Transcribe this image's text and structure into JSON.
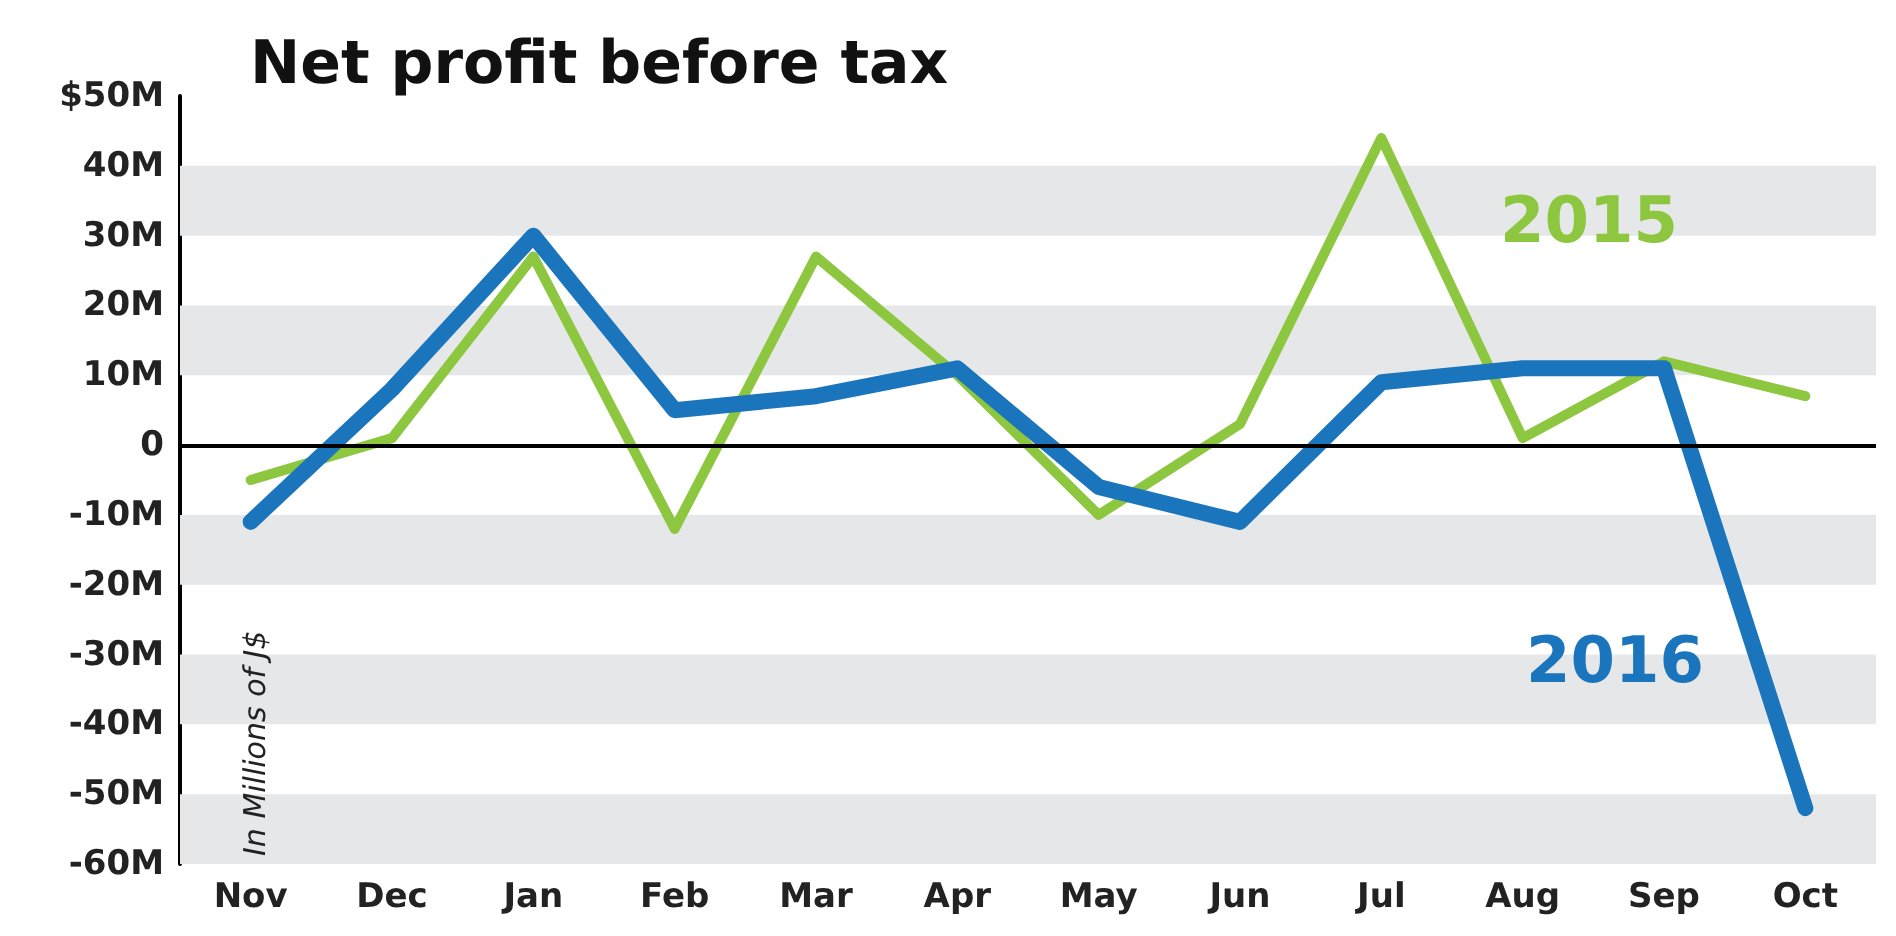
{
  "chart_data": {
    "type": "line",
    "title": "Net profit before tax",
    "ylabel": "In Millions of J$",
    "categories": [
      "Nov",
      "Dec",
      "Jan",
      "Feb",
      "Mar",
      "Apr",
      "May",
      "Jun",
      "Jul",
      "Aug",
      "Sep",
      "Oct"
    ],
    "series": [
      {
        "name": "2015",
        "color": "#8dc63f",
        "values": [
          -5,
          1,
          27,
          -12,
          27,
          10,
          -10,
          3,
          44,
          1,
          12,
          7
        ]
      },
      {
        "name": "2016",
        "color": "#1b75bc",
        "values": [
          -11,
          8,
          30,
          5,
          7,
          11,
          -6,
          -11,
          9,
          11,
          11,
          -52
        ]
      }
    ],
    "ylim": [
      -60,
      50
    ],
    "yticks": [
      {
        "value": -60,
        "label": "-60M"
      },
      {
        "value": -50,
        "label": "-50M"
      },
      {
        "value": -40,
        "label": "-40M"
      },
      {
        "value": -30,
        "label": "-30M"
      },
      {
        "value": -20,
        "label": "-20M"
      },
      {
        "value": -10,
        "label": "-10M"
      },
      0,
      {
        "value": 10,
        "label": "10M"
      },
      {
        "value": 20,
        "label": "20M"
      },
      {
        "value": 30,
        "label": "30M"
      },
      {
        "value": 40,
        "label": "40M"
      },
      {
        "value": 50,
        "label": "$50M"
      }
    ],
    "bands": [
      {
        "axis": "y",
        "from": -60,
        "to": -50,
        "label": null,
        "color": "#e6e7e8"
      },
      {
        "axis": "y",
        "from": -40,
        "to": -30,
        "label": null,
        "color": "#e6e7e8"
      },
      {
        "axis": "y",
        "from": -20,
        "to": -10,
        "label": null,
        "color": "#e6e7e8"
      },
      {
        "axis": "y",
        "from": 10,
        "to": 20,
        "label": null,
        "color": "#e6e7e8"
      },
      {
        "axis": "y",
        "from": 30,
        "to": 40,
        "label": null,
        "color": "#e6e7e8"
      }
    ],
    "legend": false,
    "marker": "none",
    "line_style": "solid",
    "ref_lines": [
      {
        "axis": "y",
        "value": 0,
        "label": null,
        "color": "#000000"
      }
    ]
  }
}
